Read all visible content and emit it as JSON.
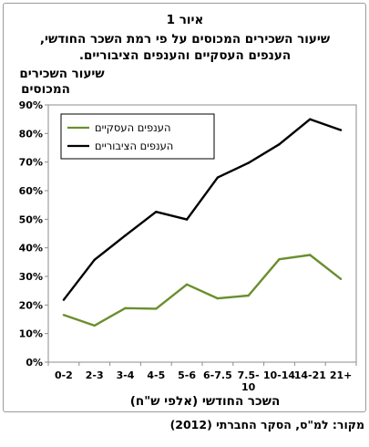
{
  "chart_data": {
    "type": "line",
    "title": "איור 1",
    "subtitle": [
      "שיעור השכירים המכוסים על פי רמת השכר החודשי,",
      "הענפים העסקיים והענפים הציבוריים."
    ],
    "ylabel": [
      "שיעור השכירים",
      "המכוסים"
    ],
    "xlabel": "השכר החודשי (אלפי ש\"ח)",
    "categories": [
      "0-2",
      "2-3",
      "3-4",
      "4-5",
      "5-6",
      "6-7.5",
      "7.5-10",
      "10-14",
      "14-21",
      "21+"
    ],
    "x_tick_lines": [
      [
        "0-2"
      ],
      [
        "2-3"
      ],
      [
        "3-4"
      ],
      [
        "4-5"
      ],
      [
        "5-6"
      ],
      [
        "6-7.5"
      ],
      [
        "7.5-",
        "10"
      ],
      [
        "10-14"
      ],
      [
        "14-21"
      ],
      [
        "21+"
      ]
    ],
    "y_ticks": [
      "0%",
      "10%",
      "20%",
      "30%",
      "40%",
      "50%",
      "60%",
      "70%",
      "80%",
      "90%"
    ],
    "ylim": [
      0,
      90
    ],
    "grid": false,
    "legend_position": "top-left",
    "series": [
      {
        "name": "הענפים העסקיים",
        "color": "#6a8f2e",
        "values": [
          16.5,
          12.8,
          18.9,
          18.7,
          27.2,
          22.3,
          23.3,
          36.0,
          37.5,
          29.1
        ]
      },
      {
        "name": "הענפים הציבוריים",
        "color": "#000000",
        "values": [
          21.8,
          35.8,
          44.3,
          52.6,
          49.9,
          64.6,
          69.7,
          76.2,
          85.0,
          81.2
        ]
      }
    ]
  },
  "source": "מקור: למ\"ס, הסקר החברתי (2012)"
}
